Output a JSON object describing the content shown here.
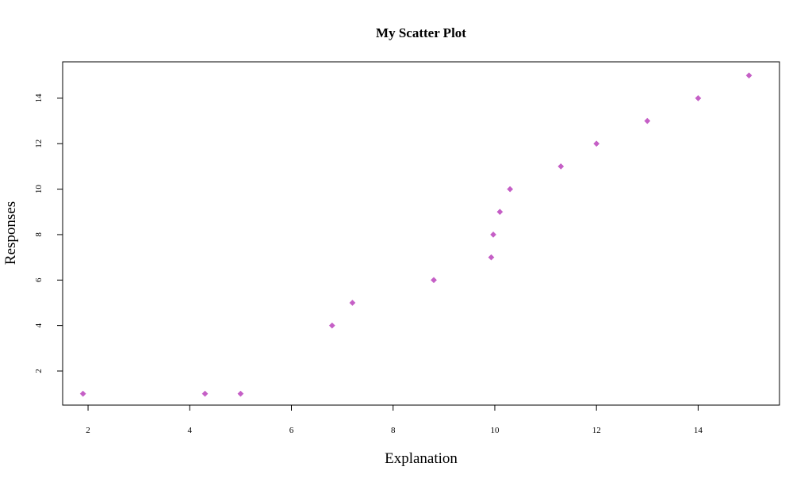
{
  "chart_data": {
    "type": "scatter",
    "title": "My Scatter Plot",
    "xlabel": "Explanation",
    "ylabel": "Responses",
    "xlim": [
      1.5,
      15.6
    ],
    "ylim": [
      0.5,
      15.6
    ],
    "x_ticks": [
      2,
      4,
      6,
      8,
      10,
      12,
      14
    ],
    "y_ticks": [
      2,
      4,
      6,
      8,
      10,
      12,
      14
    ],
    "grid": false,
    "marker": "diamond",
    "point_color": "#c55fc6",
    "points": [
      {
        "x": 1.9,
        "y": 1
      },
      {
        "x": 4.3,
        "y": 1
      },
      {
        "x": 5.0,
        "y": 1
      },
      {
        "x": 6.8,
        "y": 4
      },
      {
        "x": 7.2,
        "y": 5
      },
      {
        "x": 8.8,
        "y": 6
      },
      {
        "x": 9.93,
        "y": 7
      },
      {
        "x": 9.97,
        "y": 8
      },
      {
        "x": 10.1,
        "y": 9
      },
      {
        "x": 10.3,
        "y": 10
      },
      {
        "x": 11.3,
        "y": 11
      },
      {
        "x": 12.0,
        "y": 12
      },
      {
        "x": 13.0,
        "y": 13
      },
      {
        "x": 14.0,
        "y": 14
      },
      {
        "x": 15.0,
        "y": 15
      }
    ]
  }
}
